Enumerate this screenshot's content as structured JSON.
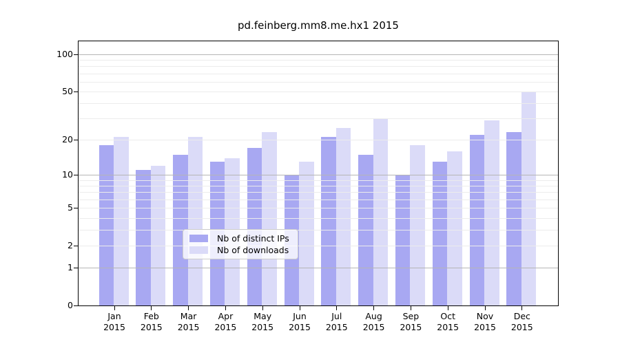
{
  "chart_data": {
    "type": "bar",
    "title": "pd.feinberg.mm8.me.hx1 2015",
    "categories": [
      "Jan",
      "Feb",
      "Mar",
      "Apr",
      "May",
      "Jun",
      "Jul",
      "Aug",
      "Sep",
      "Oct",
      "Nov",
      "Dec"
    ],
    "category_year": "2015",
    "series": [
      {
        "name": "Nb of distinct IPs",
        "color": "#a8a8f2",
        "values": [
          18,
          11,
          15,
          13,
          17,
          10,
          21,
          15,
          10,
          13,
          22,
          23
        ]
      },
      {
        "name": "Nb of downloads",
        "color": "#dbdbf8",
        "values": [
          21,
          12,
          21,
          14,
          23,
          13,
          25,
          30,
          18,
          16,
          29,
          50
        ]
      }
    ],
    "xlabel": "",
    "ylabel": "",
    "y_axis": {
      "scale": "log10(value+1)",
      "tick_values": [
        100,
        50,
        20,
        10,
        5,
        2,
        1,
        0
      ],
      "ylim": [
        0,
        127
      ]
    },
    "grid": {
      "enabled": true,
      "minor_values": [
        2,
        3,
        4,
        5,
        6,
        7,
        8,
        9,
        20,
        30,
        40,
        50,
        60,
        70,
        80,
        90
      ],
      "major_values": [
        1,
        10,
        100
      ],
      "minor_color": "#ececec",
      "major_color": "#b5b5b5"
    },
    "legend": {
      "position": "bottom-center-inside"
    },
    "colors": {
      "plot_border": "#000000",
      "background": "#ffffff",
      "text": "#000000"
    }
  }
}
